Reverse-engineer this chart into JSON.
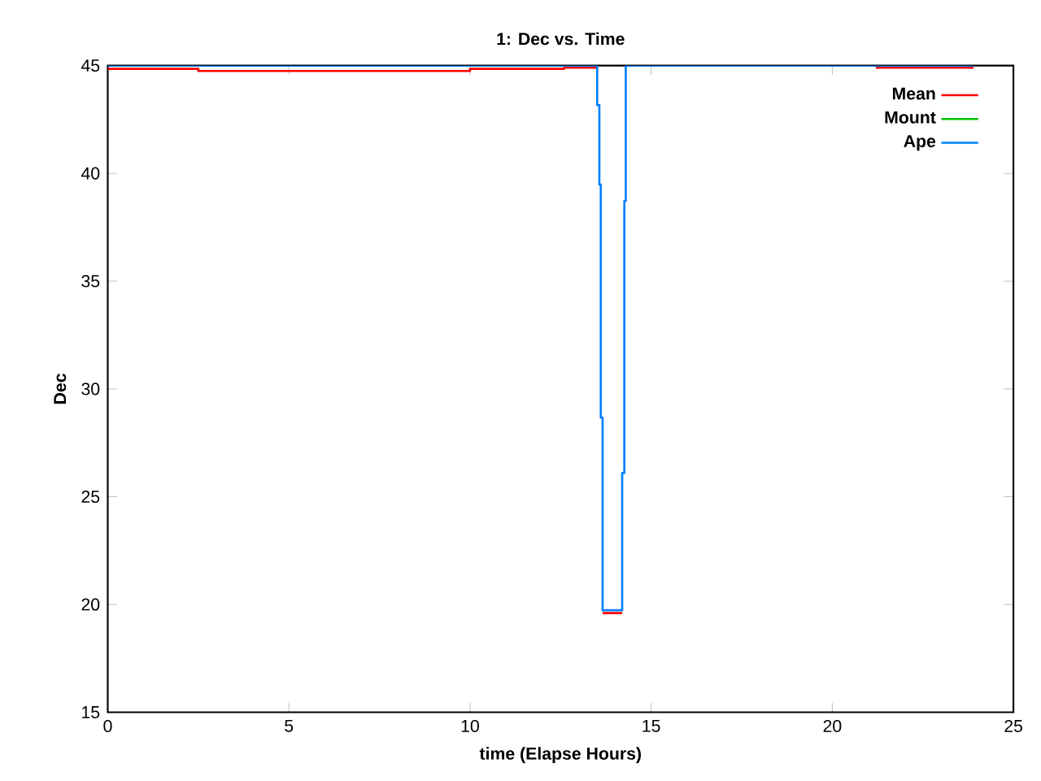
{
  "chart_data": {
    "type": "step",
    "title": "1: Dec vs. Time",
    "xlabel": "time (Elapse Hours)",
    "ylabel": "Dec",
    "xlim": [
      0,
      25
    ],
    "ylim": [
      15,
      45
    ],
    "xticks": [
      0,
      5,
      10,
      15,
      20,
      25
    ],
    "yticks": [
      15,
      20,
      25,
      30,
      35,
      40,
      45
    ],
    "grid": false,
    "legend": "top right",
    "marker": "none",
    "line_style": "solid",
    "series": [
      {
        "name": "Mean",
        "color": "#ff0000",
        "x": [
          0,
          2.5,
          10,
          12.6,
          13.51,
          null,
          13.66,
          14.2,
          null,
          21.2,
          23.9
        ],
        "values": [
          44.85,
          44.75,
          44.85,
          44.9,
          44.9,
          null,
          19.6,
          19.6,
          null,
          44.9,
          44.9
        ]
      },
      {
        "name": "Mount",
        "color": "#00c000",
        "x": [
          null
        ],
        "values": [
          null
        ]
      },
      {
        "name": "Ape",
        "color": "#0080ff",
        "x": [
          0,
          13.51,
          13.57,
          13.61,
          13.66,
          14.2,
          14.26,
          14.3,
          23.9
        ],
        "values": [
          45,
          43.17,
          39.48,
          28.67,
          19.73,
          26.1,
          38.72,
          45,
          45
        ]
      }
    ]
  }
}
